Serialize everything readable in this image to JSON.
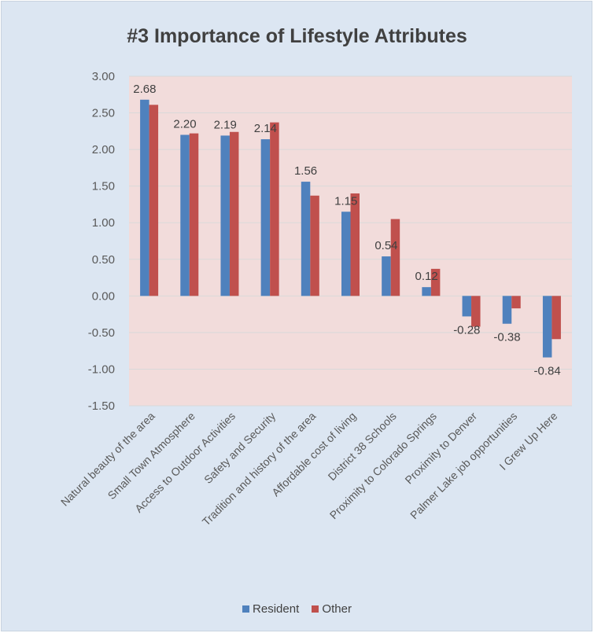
{
  "chart_data": {
    "type": "bar",
    "title": "#3 Importance of Lifestyle Attributes",
    "categories": [
      "Natural beauty of the area",
      "Small Town Atmosphere",
      "Access to Outdoor Activities",
      "Safety and Security",
      "Tradition and history of the area",
      "Affordable cost of living",
      "District 38 Schools",
      "Proximity to Colorado Springs",
      "Proximity to Denver",
      "Palmer Lake job opportunities",
      "I Grew Up Here"
    ],
    "series": [
      {
        "name": "Resident",
        "color": "#4f81bd",
        "values": [
          2.68,
          2.2,
          2.19,
          2.14,
          1.56,
          1.15,
          0.54,
          0.12,
          -0.28,
          -0.38,
          -0.84
        ],
        "labels": [
          "2.68",
          "2.20",
          "2.19",
          "2.14",
          "1.56",
          "1.15",
          "0.54",
          "0.12",
          "-0.28",
          "-0.38",
          "-0.84"
        ]
      },
      {
        "name": "Other",
        "color": "#c0504d",
        "values": [
          2.61,
          2.22,
          2.24,
          2.37,
          1.37,
          1.4,
          1.05,
          0.37,
          -0.42,
          -0.17,
          -0.59
        ]
      }
    ],
    "ylim": [
      -1.5,
      3.0
    ],
    "yticks": [
      "3.00",
      "2.50",
      "2.00",
      "1.50",
      "1.00",
      "0.50",
      "0.00",
      "-0.50",
      "-1.00",
      "-1.50"
    ],
    "grid": true,
    "legend_position": "bottom",
    "plot_background": "#f2dcdb"
  }
}
